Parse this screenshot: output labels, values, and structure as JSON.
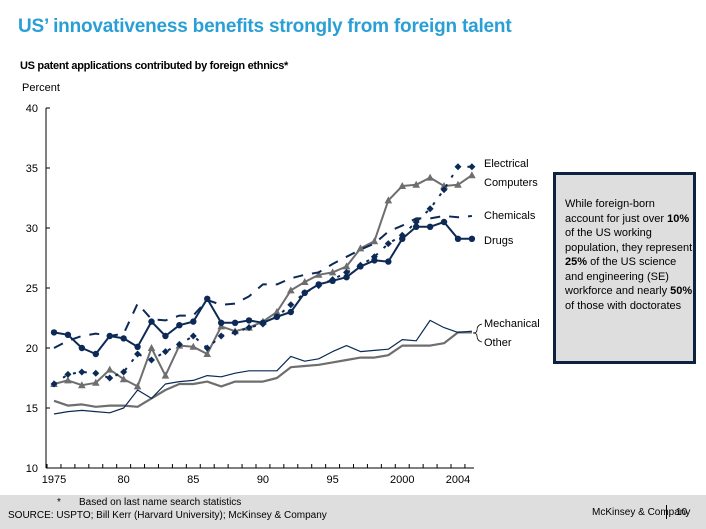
{
  "title": "US’ innovativeness benefits strongly from foreign talent",
  "subtitle": "US patent applications contributed by foreign ethnics*",
  "unit_label": "Percent",
  "callout": {
    "parts": [
      {
        "text": "While foreign-born account for just over ",
        "bold": false
      },
      {
        "text": "10%",
        "bold": true
      },
      {
        "text": " of the US working population, they represent ",
        "bold": false
      },
      {
        "text": "25%",
        "bold": true
      },
      {
        "text": " of the US science and engineering (SE) workforce and nearly ",
        "bold": false
      },
      {
        "text": "50%",
        "bold": true
      },
      {
        "text": " of those with doctorates",
        "bold": false
      }
    ]
  },
  "footer": {
    "footnote_marker": "*",
    "footnote": "Based on last name search statistics",
    "source": "SOURCE: USPTO; Bill Kerr (Harvard University); McKinsey & Company",
    "brand": "McKinsey & Company",
    "page_number": "10"
  },
  "chart_data": {
    "type": "line",
    "title": "US patent applications contributed by foreign ethnics*",
    "xlabel": "",
    "ylabel": "Percent",
    "ylim": [
      10,
      40
    ],
    "yticks": [
      10,
      15,
      20,
      25,
      30,
      35,
      40
    ],
    "x": [
      1975,
      1976,
      1977,
      1978,
      1979,
      1980,
      1981,
      1982,
      1983,
      1984,
      1985,
      1986,
      1987,
      1988,
      1989,
      1990,
      1991,
      1992,
      1993,
      1994,
      1995,
      1996,
      1997,
      1998,
      1999,
      2000,
      2001,
      2002,
      2003,
      2004,
      2005
    ],
    "xtick_labels": [
      {
        "year": 1975,
        "label": "1975"
      },
      {
        "year": 1980,
        "label": "80"
      },
      {
        "year": 1985,
        "label": "85"
      },
      {
        "year": 1990,
        "label": "90"
      },
      {
        "year": 1995,
        "label": "95"
      },
      {
        "year": 2000,
        "label": "2000"
      },
      {
        "year": 2004,
        "label": "2004"
      }
    ],
    "grid": false,
    "legend": "right, inline labels",
    "series": [
      {
        "name": "Electrical",
        "style": "dotted-diamond",
        "color": "#0c2a55",
        "values": [
          17.0,
          17.8,
          18.0,
          17.9,
          17.5,
          18.0,
          19.5,
          19.0,
          19.7,
          20.3,
          21.0,
          20.0,
          21.0,
          21.3,
          21.7,
          22.0,
          22.6,
          23.6,
          24.6,
          25.2,
          25.7,
          26.3,
          26.9,
          27.6,
          28.7,
          29.4,
          30.5,
          31.6,
          33.2,
          35.1,
          35.1
        ]
      },
      {
        "name": "Computers",
        "style": "triangle",
        "color": "#6e6e6e",
        "values": [
          17.0,
          17.3,
          16.9,
          17.1,
          18.2,
          17.4,
          16.8,
          20.0,
          17.7,
          20.2,
          20.1,
          19.5,
          21.8,
          21.4,
          21.7,
          22.2,
          23.0,
          24.8,
          25.5,
          26.1,
          26.3,
          26.8,
          28.3,
          28.9,
          32.3,
          33.5,
          33.6,
          34.2,
          33.5,
          33.6,
          34.4
        ]
      },
      {
        "name": "Chemicals",
        "style": "dashed",
        "color": "#0c2a55",
        "values": [
          20.0,
          20.6,
          21.0,
          21.2,
          21.0,
          21.2,
          23.7,
          22.4,
          22.3,
          22.7,
          22.7,
          24.0,
          23.6,
          23.7,
          24.3,
          25.3,
          25.3,
          25.8,
          26.1,
          26.3,
          27.0,
          27.6,
          28.2,
          28.7,
          29.7,
          30.2,
          30.8,
          30.8,
          31.0,
          30.9,
          31.0
        ]
      },
      {
        "name": "Drugs",
        "style": "circle",
        "color": "#0c2a55",
        "values": [
          21.3,
          21.1,
          20.0,
          19.5,
          21.0,
          20.8,
          20.1,
          22.2,
          21.0,
          21.9,
          22.2,
          24.1,
          22.1,
          22.1,
          22.3,
          22.1,
          22.6,
          23.0,
          24.6,
          25.3,
          25.6,
          25.9,
          26.8,
          27.3,
          27.2,
          29.1,
          30.1,
          30.1,
          30.5,
          29.1,
          29.1
        ]
      },
      {
        "name": "Mechanical",
        "style": "thin",
        "color": "#0c2a55",
        "values": [
          14.5,
          14.7,
          14.8,
          14.7,
          14.6,
          15.0,
          16.5,
          15.8,
          17.0,
          17.2,
          17.3,
          17.7,
          17.6,
          17.9,
          18.1,
          18.1,
          18.1,
          19.3,
          18.9,
          19.1,
          19.7,
          20.2,
          19.7,
          19.8,
          19.9,
          20.7,
          20.6,
          22.3,
          21.7,
          21.3,
          21.4
        ]
      },
      {
        "name": "Other",
        "style": "thick",
        "color": "#6e6e6e",
        "values": [
          15.6,
          15.2,
          15.3,
          15.1,
          15.2,
          15.2,
          15.1,
          15.8,
          16.5,
          17.0,
          17.0,
          17.2,
          16.8,
          17.2,
          17.2,
          17.2,
          17.5,
          18.4,
          18.5,
          18.6,
          18.8,
          19.0,
          19.2,
          19.2,
          19.4,
          20.2,
          20.2,
          20.2,
          20.4,
          21.3,
          21.3
        ]
      }
    ],
    "legend_labels": [
      "Electrical",
      "Computers",
      "Chemicals",
      "Drugs",
      "Mechanical",
      "Other"
    ]
  }
}
